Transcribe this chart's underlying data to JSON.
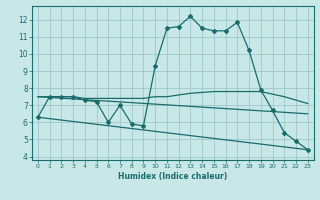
{
  "xlabel": "Humidex (Indice chaleur)",
  "background_color": "#c8e8e8",
  "grid_color": "#a0c8c8",
  "line_color": "#1a6b6b",
  "xlim": [
    -0.5,
    23.5
  ],
  "ylim": [
    3.8,
    12.8
  ],
  "yticks": [
    4,
    5,
    6,
    7,
    8,
    9,
    10,
    11,
    12
  ],
  "xticks": [
    0,
    1,
    2,
    3,
    4,
    5,
    6,
    7,
    8,
    9,
    10,
    11,
    12,
    13,
    14,
    15,
    16,
    17,
    18,
    19,
    20,
    21,
    22,
    23
  ],
  "series": [
    {
      "x": [
        0,
        1,
        2,
        3,
        4,
        5,
        6,
        7,
        8,
        9,
        10,
        11,
        12,
        13,
        14,
        15,
        16,
        17,
        18,
        19,
        20,
        21,
        22,
        23
      ],
      "y": [
        6.3,
        7.5,
        7.5,
        7.5,
        7.3,
        7.2,
        6.0,
        7.0,
        5.9,
        5.8,
        9.3,
        11.5,
        11.6,
        12.2,
        11.5,
        11.35,
        11.35,
        11.85,
        10.2,
        7.9,
        6.7,
        5.4,
        4.9,
        4.4
      ],
      "marker": "D",
      "markersize": 2.0,
      "linewidth": 0.9
    },
    {
      "x": [
        0,
        1,
        2,
        3,
        4,
        5,
        6,
        7,
        8,
        9,
        10,
        11,
        12,
        13,
        14,
        15,
        16,
        17,
        18,
        19,
        20,
        21,
        22,
        23
      ],
      "y": [
        7.5,
        7.5,
        7.5,
        7.5,
        7.4,
        7.4,
        7.4,
        7.4,
        7.4,
        7.4,
        7.5,
        7.5,
        7.6,
        7.7,
        7.75,
        7.8,
        7.8,
        7.8,
        7.8,
        7.8,
        7.65,
        7.5,
        7.3,
        7.1
      ],
      "marker": null,
      "markersize": 0,
      "linewidth": 0.9
    },
    {
      "x": [
        0,
        23
      ],
      "y": [
        7.5,
        6.5
      ],
      "marker": null,
      "markersize": 0,
      "linewidth": 0.9
    },
    {
      "comment": "straight line from 0,6.3 to 23,4.4",
      "x": [
        0,
        23
      ],
      "y": [
        6.3,
        4.4
      ],
      "marker": null,
      "markersize": 0,
      "linewidth": 0.9
    }
  ]
}
